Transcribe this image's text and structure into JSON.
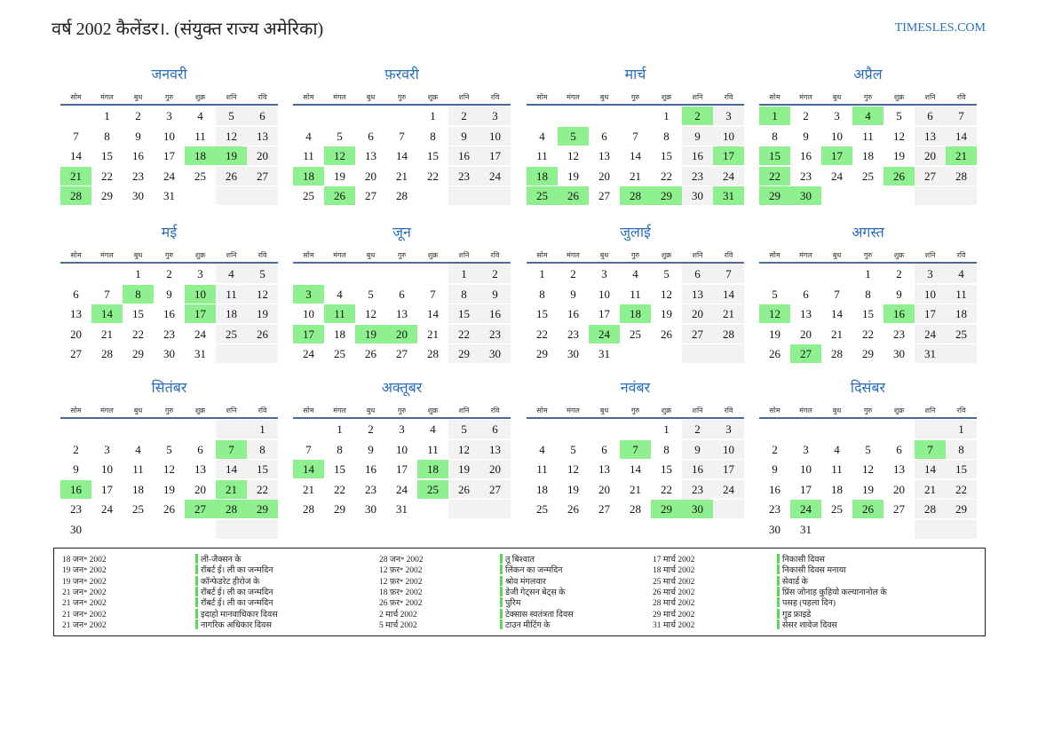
{
  "header": {
    "title": "वर्ष 2002 कैलेंडर।. (संयुक्त राज्य अमेरिका)",
    "site": "TIMESLES.COM"
  },
  "weekdays": [
    "सोम",
    "मंगल",
    "बुध",
    "गुरु",
    "शुक्र",
    "शनि",
    "रवि"
  ],
  "months": [
    {
      "name": "जनवरी",
      "weeks": [
        [
          null,
          1,
          2,
          3,
          4,
          5,
          6
        ],
        [
          7,
          8,
          9,
          10,
          11,
          12,
          13
        ],
        [
          14,
          15,
          16,
          17,
          18,
          19,
          20
        ],
        [
          21,
          22,
          23,
          24,
          25,
          26,
          27
        ],
        [
          28,
          29,
          30,
          31,
          null,
          null,
          null
        ]
      ],
      "highlighted": [
        18,
        19,
        21,
        28
      ]
    },
    {
      "name": "फ़रवरी",
      "weeks": [
        [
          null,
          null,
          null,
          null,
          1,
          2,
          3
        ],
        [
          4,
          5,
          6,
          7,
          8,
          9,
          10
        ],
        [
          11,
          12,
          13,
          14,
          15,
          16,
          17
        ],
        [
          18,
          19,
          20,
          21,
          22,
          23,
          24
        ],
        [
          25,
          26,
          27,
          28,
          null,
          null,
          null
        ]
      ],
      "highlighted": [
        12,
        18,
        26
      ]
    },
    {
      "name": "मार्च",
      "weeks": [
        [
          null,
          null,
          null,
          null,
          1,
          2,
          3
        ],
        [
          4,
          5,
          6,
          7,
          8,
          9,
          10
        ],
        [
          11,
          12,
          13,
          14,
          15,
          16,
          17
        ],
        [
          18,
          19,
          20,
          21,
          22,
          23,
          24
        ],
        [
          25,
          26,
          27,
          28,
          29,
          30,
          31
        ]
      ],
      "highlighted": [
        2,
        5,
        17,
        18,
        25,
        26,
        28,
        29,
        31
      ]
    },
    {
      "name": "अप्रैल",
      "weeks": [
        [
          1,
          2,
          3,
          4,
          5,
          6,
          7
        ],
        [
          8,
          9,
          10,
          11,
          12,
          13,
          14
        ],
        [
          15,
          16,
          17,
          18,
          19,
          20,
          21
        ],
        [
          22,
          23,
          24,
          25,
          26,
          27,
          28
        ],
        [
          29,
          30,
          null,
          null,
          null,
          null,
          null
        ]
      ],
      "highlighted": [
        1,
        4,
        15,
        17,
        21,
        22,
        26,
        29,
        30
      ]
    },
    {
      "name": "मई",
      "weeks": [
        [
          null,
          null,
          1,
          2,
          3,
          4,
          5
        ],
        [
          6,
          7,
          8,
          9,
          10,
          11,
          12
        ],
        [
          13,
          14,
          15,
          16,
          17,
          18,
          19
        ],
        [
          20,
          21,
          22,
          23,
          24,
          25,
          26
        ],
        [
          27,
          28,
          29,
          30,
          31,
          null,
          null
        ]
      ],
      "highlighted": [
        8,
        10,
        14,
        17
      ]
    },
    {
      "name": "जून",
      "weeks": [
        [
          null,
          null,
          null,
          null,
          null,
          1,
          2
        ],
        [
          3,
          4,
          5,
          6,
          7,
          8,
          9
        ],
        [
          10,
          11,
          12,
          13,
          14,
          15,
          16
        ],
        [
          17,
          18,
          19,
          20,
          21,
          22,
          23
        ],
        [
          24,
          25,
          26,
          27,
          28,
          29,
          30
        ]
      ],
      "highlighted": [
        3,
        11,
        17,
        19,
        20
      ]
    },
    {
      "name": "जुलाई",
      "weeks": [
        [
          1,
          2,
          3,
          4,
          5,
          6,
          7
        ],
        [
          8,
          9,
          10,
          11,
          12,
          13,
          14
        ],
        [
          15,
          16,
          17,
          18,
          19,
          20,
          21
        ],
        [
          22,
          23,
          24,
          25,
          26,
          27,
          28
        ],
        [
          29,
          30,
          31,
          null,
          null,
          null,
          null
        ]
      ],
      "highlighted": [
        18,
        24
      ]
    },
    {
      "name": "अगस्त",
      "weeks": [
        [
          null,
          null,
          null,
          1,
          2,
          3,
          4
        ],
        [
          5,
          6,
          7,
          8,
          9,
          10,
          11
        ],
        [
          12,
          13,
          14,
          15,
          16,
          17,
          18
        ],
        [
          19,
          20,
          21,
          22,
          23,
          24,
          25
        ],
        [
          26,
          27,
          28,
          29,
          30,
          31,
          null
        ]
      ],
      "highlighted": [
        12,
        16,
        27
      ]
    },
    {
      "name": "सितंबर",
      "weeks": [
        [
          null,
          null,
          null,
          null,
          null,
          null,
          1
        ],
        [
          2,
          3,
          4,
          5,
          6,
          7,
          8
        ],
        [
          9,
          10,
          11,
          12,
          13,
          14,
          15
        ],
        [
          16,
          17,
          18,
          19,
          20,
          21,
          22
        ],
        [
          23,
          24,
          25,
          26,
          27,
          28,
          29
        ],
        [
          30,
          null,
          null,
          null,
          null,
          null,
          null
        ]
      ],
      "highlighted": [
        7,
        16,
        21,
        27,
        28,
        29
      ]
    },
    {
      "name": "अक्तूबर",
      "weeks": [
        [
          null,
          1,
          2,
          3,
          4,
          5,
          6
        ],
        [
          7,
          8,
          9,
          10,
          11,
          12,
          13
        ],
        [
          14,
          15,
          16,
          17,
          18,
          19,
          20
        ],
        [
          21,
          22,
          23,
          24,
          25,
          26,
          27
        ],
        [
          28,
          29,
          30,
          31,
          null,
          null,
          null
        ]
      ],
      "highlighted": [
        14,
        18,
        25
      ]
    },
    {
      "name": "नवंबर",
      "weeks": [
        [
          null,
          null,
          null,
          null,
          1,
          2,
          3
        ],
        [
          4,
          5,
          6,
          7,
          8,
          9,
          10
        ],
        [
          11,
          12,
          13,
          14,
          15,
          16,
          17
        ],
        [
          18,
          19,
          20,
          21,
          22,
          23,
          24
        ],
        [
          25,
          26,
          27,
          28,
          29,
          30,
          null
        ]
      ],
      "highlighted": [
        7,
        29,
        30
      ]
    },
    {
      "name": "दिसंबर",
      "weeks": [
        [
          null,
          null,
          null,
          null,
          null,
          null,
          1
        ],
        [
          2,
          3,
          4,
          5,
          6,
          7,
          8
        ],
        [
          9,
          10,
          11,
          12,
          13,
          14,
          15
        ],
        [
          16,
          17,
          18,
          19,
          20,
          21,
          22
        ],
        [
          23,
          24,
          25,
          26,
          27,
          28,
          29
        ],
        [
          30,
          31,
          null,
          null,
          null,
          null,
          null
        ]
      ],
      "highlighted": [
        7,
        24,
        26
      ]
    }
  ],
  "events": [
    [
      {
        "date": "18 जन॰ 2002",
        "name": "ली-जैक्सन के"
      },
      {
        "date": "19 जन॰ 2002",
        "name": "रॉबर्ट ई। ली का जन्मदिन"
      },
      {
        "date": "19 जन॰ 2002",
        "name": "कॉन्फेडरेट हीरोज के"
      },
      {
        "date": "21 जन॰ 2002",
        "name": "रॉबर्ट ई। ली का जन्मदिन"
      },
      {
        "date": "21 जन॰ 2002",
        "name": "रॉबर्ट ई। ली का जन्मदिन"
      },
      {
        "date": "21 जन॰ 2002",
        "name": "इदाहो मानवाधिकार दिवस"
      },
      {
        "date": "21 जन॰ 2002",
        "name": "नागरिक अधिकार दिवस"
      }
    ],
    [
      {
        "date": "28 जन॰ 2002",
        "name": "तू बिश्वात"
      },
      {
        "date": "12 फ़र॰ 2002",
        "name": "लिंकन का जन्मदिन"
      },
      {
        "date": "12 फ़र॰ 2002",
        "name": "श्रोव मंगलवार"
      },
      {
        "date": "18 फ़र॰ 2002",
        "name": "डेजी गेट्सन बेट्स के"
      },
      {
        "date": "26 फ़र॰ 2002",
        "name": "पुरिम"
      },
      {
        "date": "2 मार्च 2002",
        "name": "टेक्सास स्वतंत्रता दिवस"
      },
      {
        "date": "5 मार्च 2002",
        "name": "टाउन मीटिंग के"
      }
    ],
    [
      {
        "date": "17 मार्च 2002",
        "name": "निकासी दिवस"
      },
      {
        "date": "18 मार्च 2002",
        "name": "निकासी दिवस मनाया"
      },
      {
        "date": "25 मार्च 2002",
        "name": "सेवार्ड के"
      },
      {
        "date": "26 मार्च 2002",
        "name": "प्रिंस जोनाह कुहियो कल्यानानोल के"
      },
      {
        "date": "28 मार्च 2002",
        "name": "पसह (पहला दिन)"
      },
      {
        "date": "29 मार्च 2002",
        "name": "गुड फ्राइडे"
      },
      {
        "date": "31 मार्च 2002",
        "name": "सेसर शावेज दिवस"
      }
    ]
  ]
}
